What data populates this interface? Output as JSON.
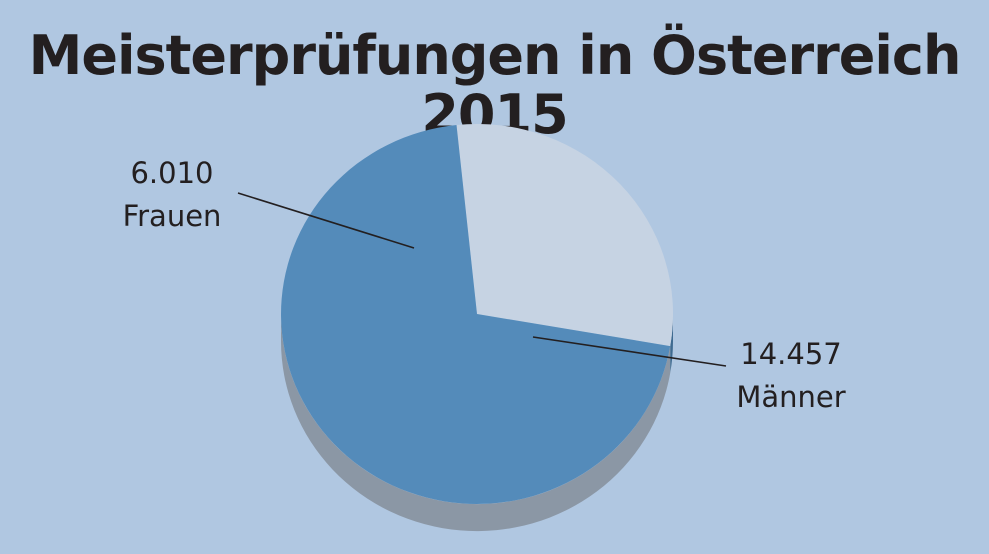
{
  "chart_data": {
    "type": "pie",
    "title": "Meisterprüfungen in Österreich 2015",
    "slices": [
      {
        "label": "Frauen",
        "value": 6010,
        "value_text": "6.010",
        "color": "#c6d3e3"
      },
      {
        "label": "Männer",
        "value": 14457,
        "value_text": "14.457",
        "color": "#548bba"
      }
    ],
    "background": "#b0c7e1",
    "style": "3d"
  }
}
